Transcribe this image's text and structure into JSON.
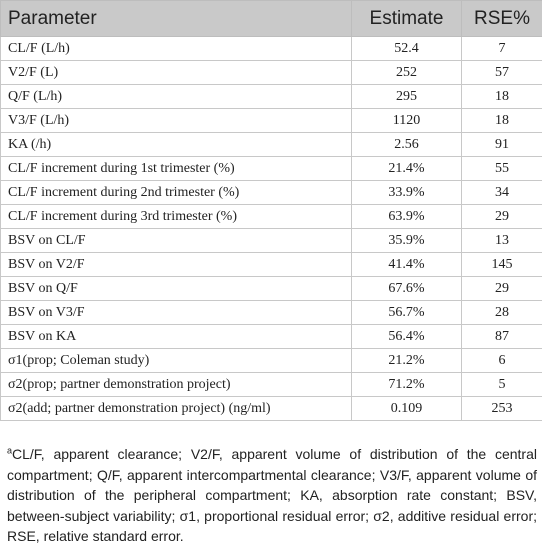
{
  "table": {
    "headers": [
      "Parameter",
      "Estimate",
      "RSE%"
    ],
    "rows": [
      [
        "CL/F (L/h)",
        "52.4",
        "7"
      ],
      [
        "V2/F (L)",
        "252",
        "57"
      ],
      [
        "Q/F (L/h)",
        "295",
        "18"
      ],
      [
        "V3/F (L/h)",
        "1120",
        "18"
      ],
      [
        "KA (/h)",
        "2.56",
        "91"
      ],
      [
        "CL/F increment during 1st trimester (%)",
        "21.4%",
        "55"
      ],
      [
        "CL/F increment during 2nd trimester (%)",
        "33.9%",
        "34"
      ],
      [
        "CL/F increment during 3rd trimester (%)",
        "63.9%",
        "29"
      ],
      [
        "BSV on CL/F",
        "35.9%",
        "13"
      ],
      [
        "BSV on V2/F",
        "41.4%",
        "145"
      ],
      [
        "BSV on Q/F",
        "67.6%",
        "29"
      ],
      [
        "BSV on V3/F",
        "56.7%",
        "28"
      ],
      [
        "BSV on KA",
        "56.4%",
        "87"
      ],
      [
        "σ1(prop; Coleman study)",
        "21.2%",
        "6"
      ],
      [
        "σ2(prop; partner demonstration project)",
        "71.2%",
        "5"
      ],
      [
        "σ2(add; partner demonstration project) (ng/ml)",
        "0.109",
        "253"
      ]
    ]
  },
  "footnote": {
    "marker": "a",
    "text": "CL/F, apparent clearance; V2/F, apparent volume of distribution of the central compartment; Q/F, apparent intercompartmental clearance; V3/F, apparent volume of distribution of the peripheral compartment; KA, absorption rate constant; BSV, between-subject variability; σ1, proportional residual error; σ2, additive residual error; RSE, relative standard error."
  },
  "colors": {
    "header_background": "#c9c9c9",
    "border": "#c8c8c8",
    "text": "#222222"
  }
}
